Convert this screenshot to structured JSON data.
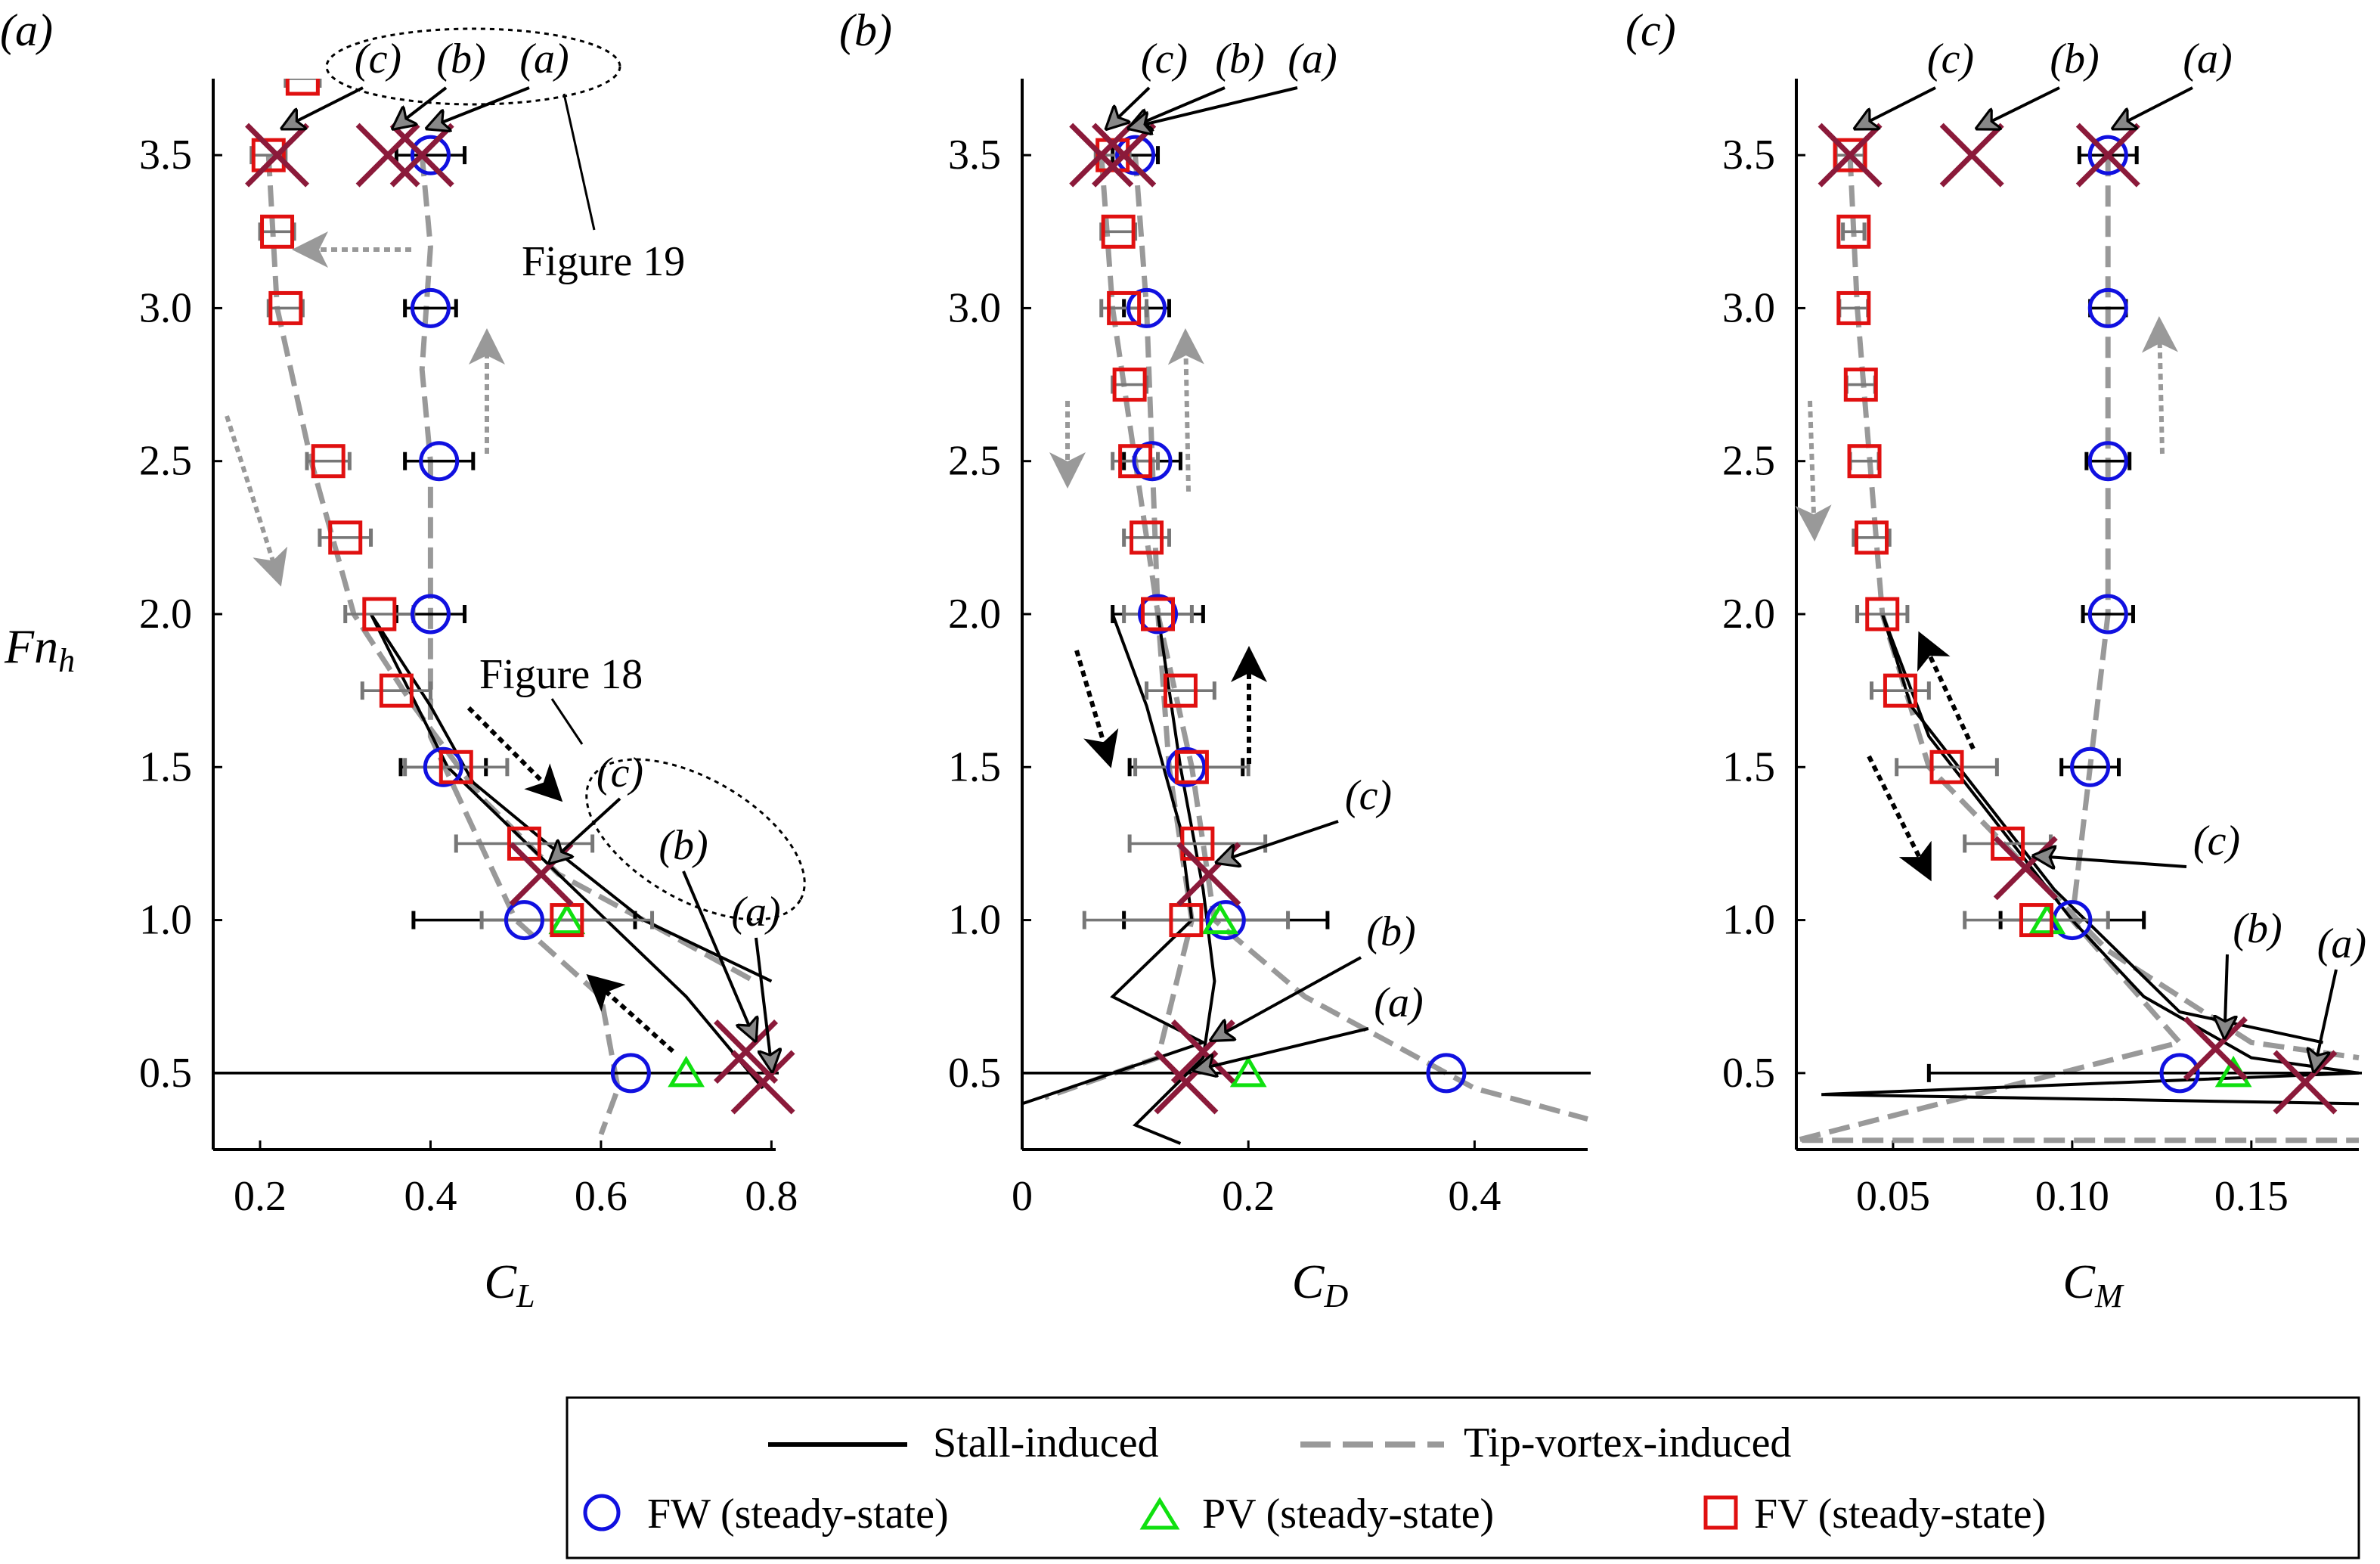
{
  "colors": {
    "fw": "#1010e0",
    "pv": "#10e010",
    "fv": "#e01010",
    "cross": "#8b1a3a",
    "stall": "#000000",
    "tip": "#999999"
  },
  "legend": {
    "stall": "Stall-induced",
    "tip": "Tip-vortex-induced",
    "fw": "FW (steady-state)",
    "pv": "PV (steady-state)",
    "fv": "FV (steady-state)"
  },
  "annotations": {
    "figure19": "Figure 19",
    "figure18": "Figure 18",
    "la": "(a)",
    "lb": "(b)",
    "lc": "(c)"
  },
  "chart_data": [
    {
      "type": "scatter",
      "panel_label": "(a)",
      "xlabel": "C_L",
      "ylabel": "Fn_h",
      "xlim": [
        0.145,
        0.805
      ],
      "ylim": [
        0.25,
        3.75
      ],
      "xticks": [
        0.2,
        0.4,
        0.6,
        0.8
      ],
      "xtick_labels": [
        "0.2",
        "0.4",
        "0.6",
        "0.8"
      ],
      "yticks": [
        0.5,
        1.0,
        1.5,
        2.0,
        2.5,
        3.0,
        3.5
      ],
      "ytick_labels": [
        "0.5",
        "1.0",
        "1.5",
        "2.0",
        "2.5",
        "3.0",
        "3.5"
      ],
      "fw": {
        "y": [
          3.5,
          3.0,
          2.5,
          2.0,
          1.5,
          1.0,
          0.5
        ],
        "x": [
          0.4,
          0.4,
          0.41,
          0.4,
          0.415,
          0.51,
          0.635
        ],
        "err": [
          0.04,
          0.03,
          0.04,
          0.04,
          0.05,
          0.13,
          0.5
        ]
      },
      "pv": {
        "y": [
          1.0,
          0.5
        ],
        "x": [
          0.56,
          0.7
        ]
      },
      "fv": {
        "y": [
          3.5,
          3.25,
          3.0,
          3.75,
          2.5,
          2.25,
          2.0,
          1.75,
          1.5,
          1.25,
          1.0
        ],
        "x": [
          0.21,
          0.22,
          0.23,
          0.25,
          0.28,
          0.3,
          0.34,
          0.36,
          0.43,
          0.51,
          0.56
        ],
        "err": [
          0.02,
          0.02,
          0.02,
          0.02,
          0.025,
          0.03,
          0.04,
          0.04,
          0.06,
          0.08,
          0.1
        ]
      },
      "crosses": [
        {
          "label": "(c)",
          "x": 0.22,
          "y": 3.5
        },
        {
          "label": "(b)",
          "x": 0.35,
          "y": 3.5
        },
        {
          "label": "(a)",
          "x": 0.39,
          "y": 3.5
        },
        {
          "label": "(c)",
          "x": 0.53,
          "y": 1.15
        },
        {
          "label": "(b)",
          "x": 0.77,
          "y": 0.57
        },
        {
          "label": "(a)",
          "x": 0.79,
          "y": 0.47
        }
      ],
      "stall": [
        [
          [
            0.33,
            2.0
          ],
          [
            0.4,
            1.7
          ],
          [
            0.45,
            1.45
          ],
          [
            0.55,
            1.22
          ],
          [
            0.65,
            1.0
          ],
          [
            0.8,
            0.8
          ]
        ],
        [
          [
            0.33,
            2.0
          ],
          [
            0.42,
            1.5
          ],
          [
            0.55,
            1.15
          ],
          [
            0.7,
            0.75
          ],
          [
            0.79,
            0.45
          ]
        ]
      ],
      "tip": [
        [
          [
            0.39,
            3.5
          ],
          [
            0.4,
            3.2
          ],
          [
            0.39,
            2.8
          ],
          [
            0.4,
            2.5
          ],
          [
            0.4,
            2.0
          ],
          [
            0.4,
            1.6
          ],
          [
            0.45,
            1.3
          ],
          [
            0.5,
            1.0
          ],
          [
            0.6,
            0.75
          ],
          [
            0.62,
            0.45
          ],
          [
            0.6,
            0.3
          ]
        ],
        [
          [
            0.21,
            3.5
          ],
          [
            0.22,
            3.0
          ],
          [
            0.26,
            2.5
          ],
          [
            0.31,
            2.0
          ],
          [
            0.38,
            1.7
          ],
          [
            0.46,
            1.4
          ],
          [
            0.55,
            1.15
          ],
          [
            0.65,
            1.0
          ],
          [
            0.78,
            0.8
          ]
        ]
      ]
    },
    {
      "type": "scatter",
      "panel_label": "(b)",
      "xlabel": "C_D",
      "ylabel": "",
      "xlim": [
        0,
        0.5
      ],
      "ylim": [
        0.25,
        3.75
      ],
      "xticks": [
        0,
        0.2,
        0.4
      ],
      "xtick_labels": [
        "0",
        "0.2",
        "0.4"
      ],
      "yticks": [
        0.5,
        1.0,
        1.5,
        2.0,
        2.5,
        3.0,
        3.5
      ],
      "ytick_labels": [
        "0.5",
        "1.0",
        "1.5",
        "2.0",
        "2.5",
        "3.0",
        "3.5"
      ],
      "fw": {
        "y": [
          3.5,
          3.0,
          2.5,
          2.0,
          1.5,
          1.0,
          0.5
        ],
        "x": [
          0.1,
          0.11,
          0.115,
          0.12,
          0.145,
          0.18,
          0.375
        ],
        "err": [
          0.02,
          0.02,
          0.025,
          0.04,
          0.05,
          0.09,
          0.5
        ]
      },
      "pv": {
        "y": [
          1.0,
          0.5
        ],
        "x": [
          0.175,
          0.2
        ]
      },
      "fv": {
        "y": [
          3.5,
          3.25,
          3.0,
          2.75,
          2.5,
          2.25,
          2.0,
          1.75,
          1.5,
          1.25,
          1.0
        ],
        "x": [
          0.08,
          0.085,
          0.09,
          0.095,
          0.1,
          0.11,
          0.12,
          0.14,
          0.15,
          0.155,
          0.145
        ],
        "err": [
          0.015,
          0.015,
          0.02,
          0.015,
          0.02,
          0.02,
          0.03,
          0.03,
          0.05,
          0.06,
          0.09
        ]
      },
      "crosses": [
        {
          "label": "(c)",
          "x": 0.07,
          "y": 3.5
        },
        {
          "label": "(b)",
          "x": 0.09,
          "y": 3.5
        },
        {
          "label": "(a)",
          "x": 0.09,
          "y": 3.5
        },
        {
          "label": "(c)",
          "x": 0.165,
          "y": 1.15
        },
        {
          "label": "(b)",
          "x": 0.16,
          "y": 0.57
        },
        {
          "label": "(a)",
          "x": 0.145,
          "y": 0.47
        }
      ],
      "stall": [
        [
          [
            0.12,
            2.0
          ],
          [
            0.14,
            1.5
          ],
          [
            0.16,
            1.1
          ],
          [
            0.17,
            0.8
          ],
          [
            0.16,
            0.55
          ],
          [
            0.1,
            0.33
          ],
          [
            0.14,
            0.27
          ]
        ],
        [
          [
            0.08,
            2.0
          ],
          [
            0.11,
            1.7
          ],
          [
            0.14,
            1.3
          ],
          [
            0.15,
            1.0
          ],
          [
            0.08,
            0.75
          ],
          [
            0.16,
            0.6
          ],
          [
            0.0,
            0.4
          ]
        ]
      ],
      "tip": [
        [
          [
            0.1,
            3.5
          ],
          [
            0.11,
            3.0
          ],
          [
            0.12,
            2.0
          ],
          [
            0.15,
            1.5
          ],
          [
            0.17,
            1.0
          ],
          [
            0.25,
            0.75
          ],
          [
            0.4,
            0.45
          ],
          [
            0.5,
            0.35
          ]
        ],
        [
          [
            0.07,
            3.5
          ],
          [
            0.08,
            3.0
          ],
          [
            0.1,
            2.5
          ],
          [
            0.12,
            2.0
          ],
          [
            0.13,
            1.5
          ],
          [
            0.15,
            1.0
          ],
          [
            0.12,
            0.55
          ],
          [
            0.02,
            0.42
          ]
        ]
      ]
    },
    {
      "type": "scatter",
      "panel_label": "(c)",
      "xlabel": "C_M",
      "ylabel": "",
      "xlim": [
        0.023,
        0.18
      ],
      "ylim": [
        0.25,
        3.75
      ],
      "xticks": [
        0.05,
        0.1,
        0.15
      ],
      "xtick_labels": [
        "0.05",
        "0.10",
        "0.15"
      ],
      "yticks": [
        0.5,
        1.0,
        1.5,
        2.0,
        2.5,
        3.0,
        3.5
      ],
      "ytick_labels": [
        "0.5",
        "1.0",
        "1.5",
        "2.0",
        "2.5",
        "3.0",
        "3.5"
      ],
      "fw": {
        "y": [
          3.5,
          3.0,
          2.5,
          2.0,
          1.5,
          1.0,
          0.5
        ],
        "x": [
          0.11,
          0.11,
          0.11,
          0.11,
          0.105,
          0.1,
          0.13
        ],
        "err": [
          0.008,
          0.005,
          0.006,
          0.007,
          0.008,
          0.02,
          0.07
        ]
      },
      "pv": {
        "y": [
          1.0,
          0.5
        ],
        "x": [
          0.093,
          0.145
        ]
      },
      "fv": {
        "y": [
          3.5,
          3.25,
          3.0,
          2.75,
          2.5,
          2.25,
          2.0,
          1.75,
          1.5,
          1.25,
          1.0
        ],
        "x": [
          0.038,
          0.039,
          0.039,
          0.041,
          0.042,
          0.044,
          0.047,
          0.052,
          0.065,
          0.082,
          0.09
        ],
        "err": [
          0.004,
          0.003,
          0.004,
          0.004,
          0.004,
          0.005,
          0.007,
          0.008,
          0.014,
          0.012,
          0.02
        ]
      },
      "crosses": [
        {
          "label": "(c)",
          "x": 0.038,
          "y": 3.5
        },
        {
          "label": "(b)",
          "x": 0.072,
          "y": 3.5
        },
        {
          "label": "(a)",
          "x": 0.11,
          "y": 3.5
        },
        {
          "label": "(c)",
          "x": 0.087,
          "y": 1.17
        },
        {
          "label": "(b)",
          "x": 0.14,
          "y": 0.58
        },
        {
          "label": "(a)",
          "x": 0.165,
          "y": 0.47
        }
      ],
      "stall": [
        [
          [
            0.047,
            2.0
          ],
          [
            0.06,
            1.6
          ],
          [
            0.08,
            1.3
          ],
          [
            0.1,
            1.0
          ],
          [
            0.12,
            0.75
          ],
          [
            0.15,
            0.55
          ],
          [
            0.18,
            0.5
          ],
          [
            0.03,
            0.43
          ],
          [
            0.18,
            0.4
          ]
        ],
        [
          [
            0.047,
            2.0
          ],
          [
            0.055,
            1.7
          ],
          [
            0.075,
            1.4
          ],
          [
            0.095,
            1.1
          ],
          [
            0.13,
            0.7
          ],
          [
            0.17,
            0.6
          ]
        ]
      ],
      "tip": [
        [
          [
            0.11,
            3.5
          ],
          [
            0.11,
            2.0
          ],
          [
            0.105,
            1.5
          ],
          [
            0.1,
            1.0
          ],
          [
            0.13,
            0.6
          ],
          [
            0.023,
            0.28
          ],
          [
            0.18,
            0.28
          ]
        ],
        [
          [
            0.038,
            3.5
          ],
          [
            0.04,
            3.0
          ],
          [
            0.047,
            2.0
          ],
          [
            0.06,
            1.5
          ],
          [
            0.085,
            1.2
          ],
          [
            0.11,
            0.9
          ],
          [
            0.15,
            0.6
          ],
          [
            0.18,
            0.55
          ]
        ]
      ]
    }
  ]
}
